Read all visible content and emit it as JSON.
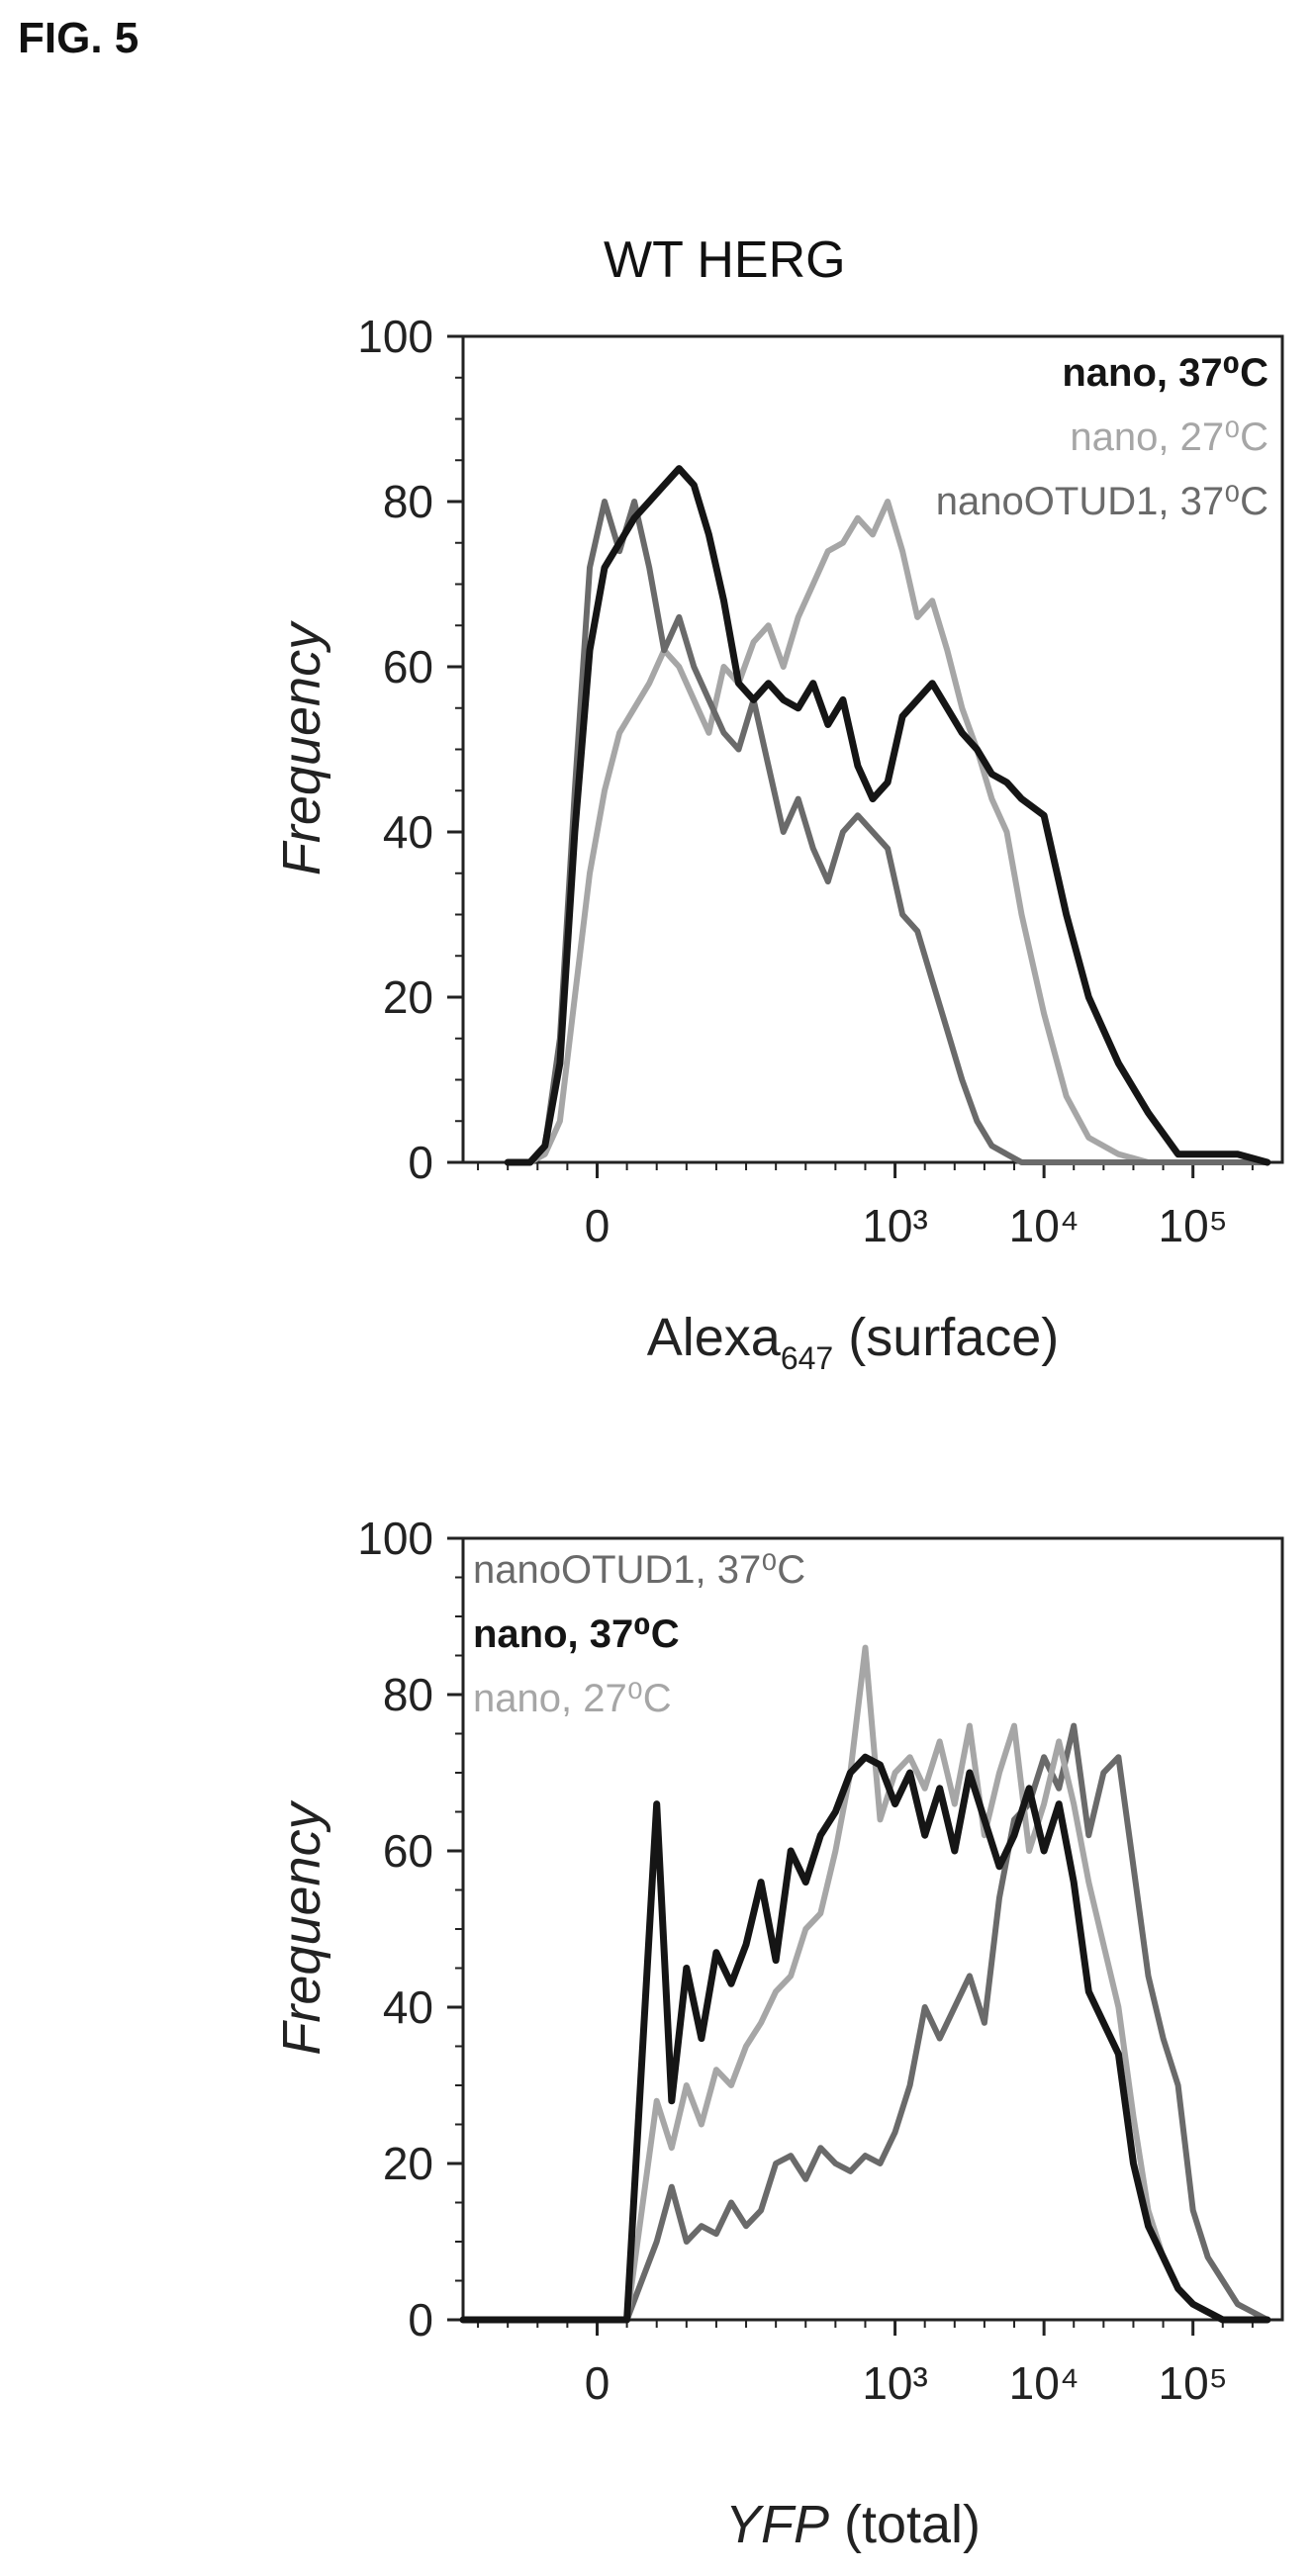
{
  "figure_label": "FIG. 5",
  "chart_data": [
    {
      "type": "line",
      "title": "WT HERG",
      "xlabel": "Alexa",
      "xlabel_sub": "647",
      "xlabel_suffix": " (surface)",
      "ylabel": "Frequency",
      "xscale": "biexponential",
      "ylim": [
        0,
        100
      ],
      "yticks": [
        0,
        20,
        40,
        60,
        80,
        100
      ],
      "xticks": [
        "0",
        "10³",
        "10⁴",
        "10⁵"
      ],
      "legend_position": "top-right",
      "series": [
        {
          "name": "nano, 37⁰C",
          "color": "#151515",
          "bold": true,
          "x": [
            -0.6,
            -0.45,
            -0.35,
            -0.25,
            -0.15,
            -0.05,
            0.05,
            0.15,
            0.25,
            0.35,
            0.45,
            0.55,
            0.65,
            0.75,
            0.85,
            0.95,
            1.05,
            1.15,
            1.25,
            1.35,
            1.45,
            1.55,
            1.65,
            1.75,
            1.85,
            1.95,
            2.05,
            2.15,
            2.25,
            2.35,
            2.45,
            2.55,
            2.65,
            2.75,
            2.85,
            3.0,
            3.15,
            3.3,
            3.5,
            3.7,
            3.9,
            4.1,
            4.3,
            4.5
          ],
          "y": [
            0,
            0,
            2,
            12,
            40,
            62,
            72,
            75,
            78,
            80,
            82,
            84,
            82,
            76,
            68,
            58,
            56,
            58,
            56,
            55,
            58,
            53,
            56,
            48,
            44,
            46,
            54,
            56,
            58,
            55,
            52,
            50,
            47,
            46,
            44,
            42,
            30,
            20,
            12,
            6,
            1,
            1,
            1,
            0
          ],
          "label_x": [],
          "label_y": []
        },
        {
          "name": "nano, 27⁰C",
          "color": "#a6a6a6",
          "bold": false,
          "x": [
            -0.6,
            -0.45,
            -0.35,
            -0.25,
            -0.15,
            -0.05,
            0.05,
            0.15,
            0.25,
            0.35,
            0.45,
            0.55,
            0.65,
            0.75,
            0.85,
            0.95,
            1.05,
            1.15,
            1.25,
            1.35,
            1.45,
            1.55,
            1.65,
            1.75,
            1.85,
            1.95,
            2.05,
            2.15,
            2.25,
            2.35,
            2.45,
            2.55,
            2.65,
            2.75,
            2.85,
            3.0,
            3.15,
            3.3,
            3.5,
            3.7,
            3.9,
            4.1,
            4.3,
            4.5
          ],
          "y": [
            0,
            0,
            1,
            5,
            20,
            35,
            45,
            52,
            55,
            58,
            62,
            60,
            56,
            52,
            60,
            58,
            63,
            65,
            60,
            66,
            70,
            74,
            75,
            78,
            76,
            80,
            74,
            66,
            68,
            62,
            55,
            50,
            44,
            40,
            30,
            18,
            8,
            3,
            1,
            0,
            0,
            0,
            0,
            0
          ],
          "label_x": [],
          "label_y": []
        },
        {
          "name": "nanoOTUD1, 37⁰C",
          "color": "#6a6a6a",
          "bold": false,
          "x": [
            -0.6,
            -0.45,
            -0.35,
            -0.25,
            -0.15,
            -0.05,
            0.05,
            0.15,
            0.25,
            0.35,
            0.45,
            0.55,
            0.65,
            0.75,
            0.85,
            0.95,
            1.05,
            1.15,
            1.25,
            1.35,
            1.45,
            1.55,
            1.65,
            1.75,
            1.85,
            1.95,
            2.05,
            2.15,
            2.25,
            2.35,
            2.45,
            2.55,
            2.65,
            2.75,
            2.85,
            3.0,
            3.15,
            3.3,
            3.5,
            3.7,
            3.9,
            4.1,
            4.3,
            4.5
          ],
          "y": [
            0,
            0,
            2,
            15,
            45,
            72,
            80,
            74,
            80,
            72,
            62,
            66,
            60,
            56,
            52,
            50,
            56,
            48,
            40,
            44,
            38,
            34,
            40,
            42,
            40,
            38,
            30,
            28,
            22,
            16,
            10,
            5,
            2,
            1,
            0,
            0,
            0,
            0,
            0,
            0,
            0,
            0,
            0,
            0
          ],
          "label_x": [],
          "label_y": []
        }
      ]
    },
    {
      "type": "line",
      "title": "",
      "xlabel": "YFP",
      "xlabel_sub": "",
      "xlabel_suffix": " (total)",
      "ylabel": "Frequency",
      "xscale": "biexponential",
      "ylim": [
        0,
        100
      ],
      "yticks": [
        0,
        20,
        40,
        60,
        80,
        100
      ],
      "xticks": [
        "0",
        "10³",
        "10⁴",
        "10⁵"
      ],
      "legend_position": "top-left",
      "series": [
        {
          "name": "nanoOTUD1, 37⁰C",
          "color": "#6a6a6a",
          "bold": false,
          "x": [
            -0.9,
            0.2,
            0.4,
            0.5,
            0.6,
            0.7,
            0.8,
            0.9,
            1.0,
            1.1,
            1.2,
            1.3,
            1.4,
            1.5,
            1.6,
            1.7,
            1.8,
            1.9,
            2.0,
            2.1,
            2.2,
            2.3,
            2.4,
            2.5,
            2.6,
            2.7,
            2.8,
            2.9,
            3.0,
            3.1,
            3.2,
            3.3,
            3.4,
            3.5,
            3.6,
            3.7,
            3.8,
            3.9,
            4.0,
            4.1,
            4.2,
            4.3,
            4.4,
            4.5
          ],
          "y": [
            0,
            0,
            10,
            17,
            10,
            12,
            11,
            15,
            12,
            14,
            20,
            21,
            18,
            22,
            20,
            19,
            21,
            20,
            24,
            30,
            40,
            36,
            40,
            44,
            38,
            54,
            64,
            66,
            72,
            68,
            76,
            62,
            70,
            72,
            58,
            44,
            36,
            30,
            14,
            8,
            5,
            2,
            1,
            0
          ],
          "label_x": [],
          "label_y": []
        },
        {
          "name": "nano, 37⁰C",
          "color": "#151515",
          "bold": true,
          "x": [
            -0.9,
            0.2,
            0.4,
            0.5,
            0.6,
            0.7,
            0.8,
            0.9,
            1.0,
            1.1,
            1.2,
            1.3,
            1.4,
            1.5,
            1.6,
            1.7,
            1.8,
            1.9,
            2.0,
            2.1,
            2.2,
            2.3,
            2.4,
            2.5,
            2.6,
            2.7,
            2.8,
            2.9,
            3.0,
            3.1,
            3.2,
            3.3,
            3.4,
            3.5,
            3.6,
            3.7,
            3.8,
            3.9,
            4.0,
            4.1,
            4.2,
            4.3,
            4.4,
            4.5
          ],
          "y": [
            0,
            0,
            66,
            28,
            45,
            36,
            47,
            43,
            48,
            56,
            46,
            60,
            56,
            62,
            65,
            70,
            72,
            71,
            66,
            70,
            62,
            68,
            60,
            70,
            64,
            58,
            62,
            68,
            60,
            66,
            56,
            42,
            38,
            34,
            20,
            12,
            8,
            4,
            2,
            1,
            0,
            0,
            0,
            0
          ],
          "label_x": [],
          "label_y": []
        },
        {
          "name": "nano, 27⁰C",
          "color": "#a6a6a6",
          "bold": false,
          "x": [
            -0.9,
            0.2,
            0.4,
            0.5,
            0.6,
            0.7,
            0.8,
            0.9,
            1.0,
            1.1,
            1.2,
            1.3,
            1.4,
            1.5,
            1.6,
            1.7,
            1.8,
            1.9,
            2.0,
            2.1,
            2.2,
            2.3,
            2.4,
            2.5,
            2.6,
            2.7,
            2.8,
            2.9,
            3.0,
            3.1,
            3.2,
            3.3,
            3.4,
            3.5,
            3.6,
            3.7,
            3.8,
            3.9,
            4.0,
            4.1,
            4.2,
            4.3,
            4.4,
            4.5
          ],
          "y": [
            0,
            0,
            28,
            22,
            30,
            25,
            32,
            30,
            35,
            38,
            42,
            44,
            50,
            52,
            60,
            70,
            86,
            64,
            70,
            72,
            68,
            74,
            66,
            76,
            62,
            70,
            76,
            60,
            66,
            74,
            66,
            56,
            48,
            40,
            26,
            14,
            8,
            4,
            2,
            1,
            0,
            0,
            0,
            0
          ],
          "label_x": [],
          "label_y": []
        }
      ]
    }
  ]
}
